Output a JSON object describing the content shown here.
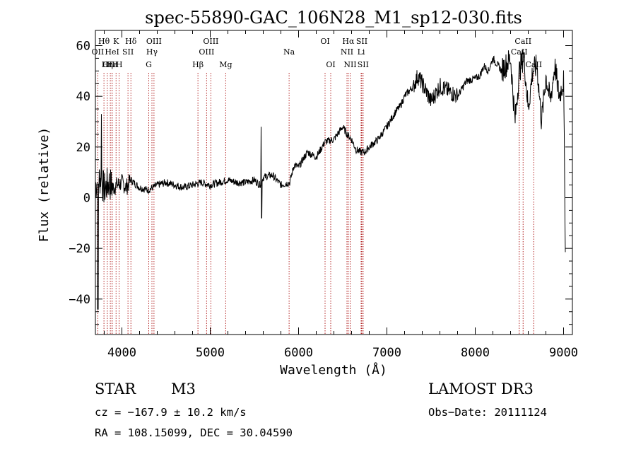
{
  "chart_data": {
    "type": "line",
    "title": "spec-55890-GAC_106N28_M1_sp12-030.fits",
    "xlabel": "Wavelength (Å)",
    "ylabel": "Flux (relative)",
    "xlim": [
      3700,
      9100
    ],
    "ylim": [
      -54,
      66
    ],
    "x_ticks": [
      4000,
      5000,
      6000,
      7000,
      8000,
      9000
    ],
    "y_ticks": [
      -40,
      -20,
      0,
      20,
      40,
      60
    ],
    "grid": false,
    "line_color": "#000000",
    "marker_color": "#b22222",
    "spectrum": {
      "name": "flux",
      "x": [
        3700,
        3760,
        3800,
        3850,
        3900,
        3950,
        4000,
        4050,
        4100,
        4200,
        4300,
        4400,
        4500,
        4600,
        4700,
        4800,
        4900,
        5000,
        5100,
        5200,
        5300,
        5400,
        5500,
        5560,
        5600,
        5700,
        5800,
        5900,
        5950,
        6000,
        6100,
        6200,
        6300,
        6400,
        6500,
        6550,
        6600,
        6650,
        6700,
        6750,
        6800,
        6900,
        7000,
        7100,
        7150,
        7200,
        7300,
        7350,
        7400,
        7500,
        7600,
        7700,
        7800,
        7900,
        8000,
        8050,
        8100,
        8150,
        8200,
        8300,
        8400,
        8450,
        8500,
        8550,
        8600,
        8650,
        8700,
        8750,
        8800,
        8850,
        8900,
        8950,
        9000,
        9020
      ],
      "y": [
        5,
        8,
        3,
        6,
        4,
        5,
        6,
        4,
        7,
        4,
        3,
        5,
        6,
        5,
        4,
        5,
        6,
        5,
        6,
        7,
        6,
        6,
        7,
        5,
        8,
        9,
        5,
        6,
        13,
        12,
        18,
        16,
        22,
        23,
        28,
        25,
        23,
        19,
        18,
        18,
        20,
        23,
        28,
        34,
        36,
        40,
        44,
        48,
        45,
        38,
        44,
        42,
        40,
        46,
        47,
        48,
        52,
        50,
        55,
        50,
        55,
        30,
        50,
        56,
        35,
        50,
        52,
        30,
        48,
        38,
        52,
        40,
        46,
        -18
      ]
    },
    "line_markers": [
      {
        "label": "Hθ",
        "x": 3797,
        "row": 1
      },
      {
        "label": "OII",
        "x": 3727,
        "row": 2
      },
      {
        "label": "OIII",
        "x": 3869,
        "row": 3
      },
      {
        "label": "Hε",
        "x": 3889,
        "row": 3
      },
      {
        "label": "Hη",
        "x": 3835,
        "row": 3
      },
      {
        "label": "K",
        "x": 3934,
        "row": 1
      },
      {
        "label": "HeI",
        "x": 3889,
        "row": 2
      },
      {
        "label": "H",
        "x": 3969,
        "row": 3
      },
      {
        "label": "SII",
        "x": 4069,
        "row": 2
      },
      {
        "label": "Hδ",
        "x": 4102,
        "row": 1
      },
      {
        "label": "OIII",
        "x": 4363,
        "row": 1
      },
      {
        "label": "Hγ",
        "x": 4340,
        "row": 2
      },
      {
        "label": "G",
        "x": 4304,
        "row": 3
      },
      {
        "label": "Hβ",
        "x": 4861,
        "row": 3
      },
      {
        "label": "OIII",
        "x": 5007,
        "row": 1
      },
      {
        "label": "OIII",
        "x": 4959,
        "row": 2
      },
      {
        "label": "Mg",
        "x": 5175,
        "row": 3
      },
      {
        "label": "Na",
        "x": 5893,
        "row": 2
      },
      {
        "label": "OI",
        "x": 6300,
        "row": 1
      },
      {
        "label": "OI",
        "x": 6364,
        "row": 3
      },
      {
        "label": "Hα",
        "x": 6563,
        "row": 1
      },
      {
        "label": "NII",
        "x": 6548,
        "row": 2
      },
      {
        "label": "NII",
        "x": 6584,
        "row": 3
      },
      {
        "label": "SII",
        "x": 6716,
        "row": 1
      },
      {
        "label": "Li",
        "x": 6708,
        "row": 2
      },
      {
        "label": "SII",
        "x": 6731,
        "row": 3
      },
      {
        "label": "CaII",
        "x": 8542,
        "row": 1
      },
      {
        "label": "CaII",
        "x": 8498,
        "row": 2
      },
      {
        "label": "CaII",
        "x": 8662,
        "row": 3
      }
    ]
  },
  "annotations": {
    "object_class": "STAR",
    "subclass": "M3",
    "survey": "LAMOST DR3",
    "cz": "cz = −167.9 ± 10.2 km/s",
    "obs_date": "Obs−Date: 20111124",
    "coords": "RA = 108.15099, DEC =  30.04590"
  }
}
